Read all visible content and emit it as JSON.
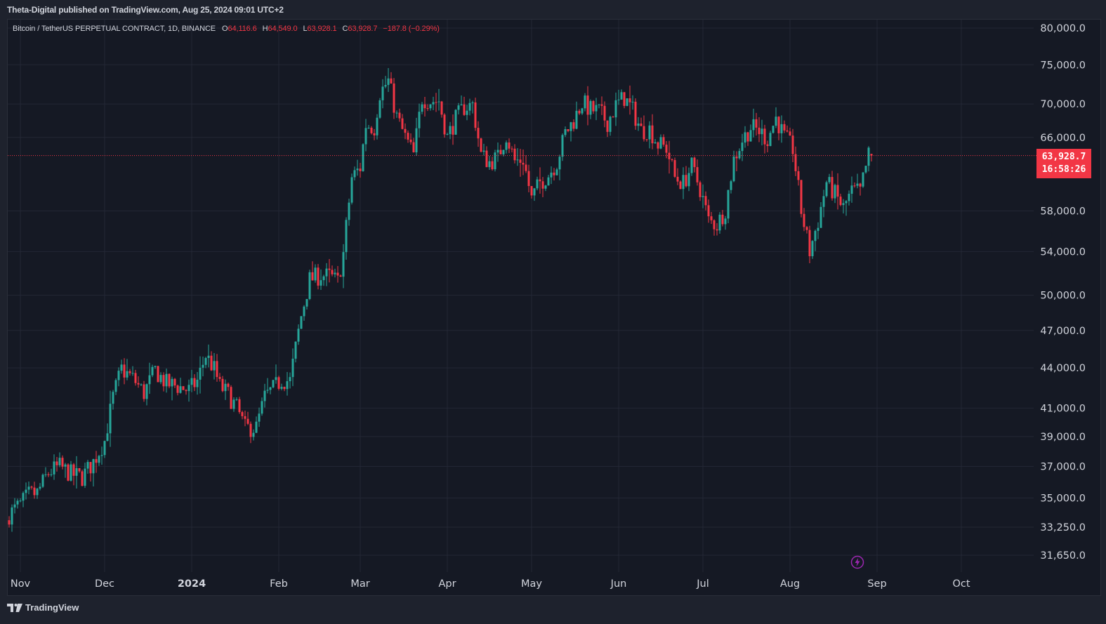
{
  "header": {
    "published": "Theta-Digital published on TradingView.com, Aug 25, 2024 09:01 UTC+2"
  },
  "legend": {
    "symbol": "Bitcoin / TetherUS PERPETUAL CONTRACT, 1D, BINANCE",
    "open_key": "O",
    "open": "64,116.6",
    "high_key": "H",
    "high": "64,549.0",
    "low_key": "L",
    "low": "63,928.1",
    "close_key": "C",
    "close": "63,928.7",
    "change": "−187.8 (−0.29%)"
  },
  "last_price": {
    "price": "63,928.7",
    "countdown": "16:58:26"
  },
  "footer": {
    "brand": "TradingView"
  },
  "colors": {
    "up": "#26a69a",
    "down": "#f23645",
    "grid": "#232735",
    "bg": "#151924",
    "axis_text": "#d1d4dc",
    "accent_bolt": "#9c27b0"
  },
  "icons": {
    "logo": "tradingview-logo-icon",
    "bolt": "lightning-icon"
  },
  "chart_data": {
    "type": "candlestick",
    "scale": "log",
    "title": "Bitcoin / TetherUS PERPETUAL CONTRACT, 1D, BINANCE",
    "ylim": [
      30800,
      81500
    ],
    "y_ticks": [
      80000,
      75000,
      70000,
      66000,
      58000,
      54000,
      50000,
      47000,
      44000,
      41000,
      39000,
      37000,
      35000,
      33250,
      31650
    ],
    "y_tick_labels": [
      "80,000.0",
      "75,000.0",
      "70,000.0",
      "66,000.0",
      "58,000.0",
      "54,000.0",
      "50,000.0",
      "47,000.0",
      "44,000.0",
      "41,000.0",
      "39,000.0",
      "37,000.0",
      "35,000.0",
      "33,250.0",
      "31,650.0"
    ],
    "x_labels": [
      {
        "label": "Nov",
        "day": 0,
        "bold": false
      },
      {
        "label": "Dec",
        "day": 30,
        "bold": false
      },
      {
        "label": "2024",
        "day": 61,
        "bold": true
      },
      {
        "label": "Feb",
        "day": 92,
        "bold": false
      },
      {
        "label": "Mar",
        "day": 121,
        "bold": false
      },
      {
        "label": "Apr",
        "day": 152,
        "bold": false
      },
      {
        "label": "May",
        "day": 182,
        "bold": false
      },
      {
        "label": "Jun",
        "day": 213,
        "bold": false
      },
      {
        "label": "Jul",
        "day": 243,
        "bold": false
      },
      {
        "label": "Aug",
        "day": 274,
        "bold": false
      },
      {
        "label": "Sep",
        "day": 305,
        "bold": false
      },
      {
        "label": "Oct",
        "day": 335,
        "bold": false
      }
    ],
    "first_day_offset": -4,
    "last_price": 63928.7,
    "anchors": [
      [
        -4,
        34000
      ],
      [
        0,
        34600
      ],
      [
        3,
        35200
      ],
      [
        6,
        35300
      ],
      [
        10,
        36600
      ],
      [
        14,
        37000
      ],
      [
        18,
        36500
      ],
      [
        22,
        36300
      ],
      [
        26,
        37300
      ],
      [
        30,
        38700
      ],
      [
        33,
        41800
      ],
      [
        36,
        43900
      ],
      [
        40,
        43200
      ],
      [
        44,
        42100
      ],
      [
        48,
        43800
      ],
      [
        52,
        42800
      ],
      [
        56,
        42600
      ],
      [
        60,
        42300
      ],
      [
        63,
        43000
      ],
      [
        66,
        45000
      ],
      [
        69,
        43900
      ],
      [
        71,
        42600
      ],
      [
        74,
        42000
      ],
      [
        77,
        41000
      ],
      [
        80,
        39600
      ],
      [
        84,
        39600
      ],
      [
        87,
        41800
      ],
      [
        90,
        42400
      ],
      [
        93,
        43100
      ],
      [
        96,
        43000
      ],
      [
        100,
        48200
      ],
      [
        103,
        51400
      ],
      [
        107,
        51800
      ],
      [
        110,
        51700
      ],
      [
        113,
        51200
      ],
      [
        115,
        53800
      ],
      [
        118,
        61500
      ],
      [
        121,
        62600
      ],
      [
        123,
        67500
      ],
      [
        126,
        67200
      ],
      [
        128,
        71400
      ],
      [
        131,
        72900
      ],
      [
        134,
        68400
      ],
      [
        137,
        66000
      ],
      [
        140,
        64000
      ],
      [
        143,
        70700
      ],
      [
        146,
        70400
      ],
      [
        149,
        70400
      ],
      [
        152,
        66000
      ],
      [
        155,
        68200
      ],
      [
        158,
        69600
      ],
      [
        161,
        69900
      ],
      [
        164,
        64000
      ],
      [
        167,
        63200
      ],
      [
        170,
        63700
      ],
      [
        173,
        66300
      ],
      [
        176,
        63300
      ],
      [
        179,
        63500
      ],
      [
        182,
        59200
      ],
      [
        185,
        61000
      ],
      [
        188,
        61800
      ],
      [
        191,
        63200
      ],
      [
        194,
        66500
      ],
      [
        197,
        68000
      ],
      [
        200,
        70200
      ],
      [
        203,
        69300
      ],
      [
        206,
        69100
      ],
      [
        209,
        67800
      ],
      [
        212,
        69800
      ],
      [
        215,
        70800
      ],
      [
        218,
        69200
      ],
      [
        221,
        66800
      ],
      [
        224,
        67000
      ],
      [
        227,
        65200
      ],
      [
        230,
        64800
      ],
      [
        233,
        61500
      ],
      [
        236,
        60900
      ],
      [
        239,
        62700
      ],
      [
        242,
        60300
      ],
      [
        245,
        57000
      ],
      [
        248,
        56600
      ],
      [
        251,
        58200
      ],
      [
        254,
        63500
      ],
      [
        257,
        65700
      ],
      [
        260,
        67200
      ],
      [
        263,
        66800
      ],
      [
        266,
        65800
      ],
      [
        269,
        68300
      ],
      [
        272,
        66000
      ],
      [
        275,
        64700
      ],
      [
        278,
        58000
      ],
      [
        281,
        54000
      ],
      [
        284,
        57000
      ],
      [
        287,
        61000
      ],
      [
        290,
        59700
      ],
      [
        293,
        58300
      ],
      [
        296,
        60000
      ],
      [
        299,
        60000
      ],
      [
        302,
        64000
      ],
      [
        303,
        63928.7
      ]
    ]
  }
}
